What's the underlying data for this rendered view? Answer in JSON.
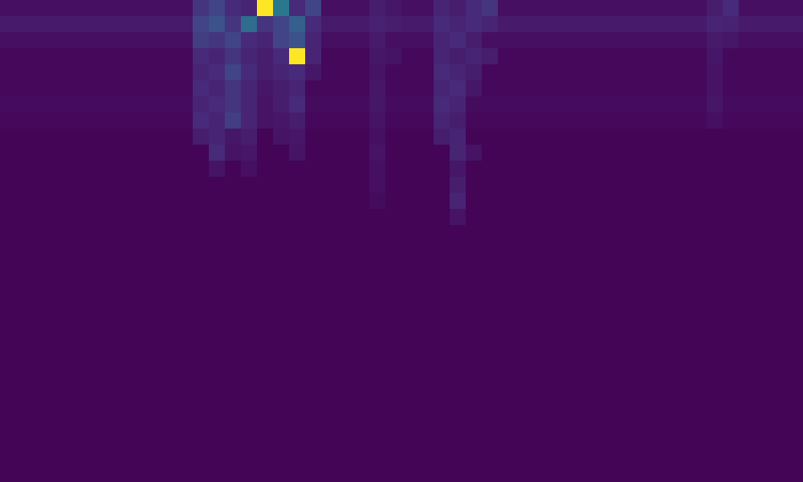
{
  "chart_data": {
    "type": "heatmap",
    "tick_labels": false,
    "color_range": [
      0,
      100
    ],
    "cells": [
      [
        4,
        4,
        4,
        4,
        4,
        4,
        4,
        4,
        4,
        4,
        4,
        4,
        15,
        20,
        12,
        10,
        100,
        40,
        12,
        20,
        4,
        4,
        4,
        8,
        6,
        4,
        4,
        10,
        8,
        12,
        15,
        4,
        4,
        4,
        4,
        4,
        4,
        4,
        4,
        4,
        4,
        4,
        4,
        4,
        8,
        12,
        4,
        4,
        4,
        4
      ],
      [
        7,
        7,
        7,
        7,
        7,
        7,
        7,
        7,
        7,
        7,
        7,
        7,
        20,
        25,
        15,
        35,
        15,
        20,
        30,
        12,
        7,
        7,
        7,
        9,
        8,
        7,
        7,
        12,
        10,
        12,
        10,
        7,
        7,
        7,
        7,
        7,
        7,
        7,
        7,
        7,
        7,
        7,
        7,
        7,
        10,
        9,
        7,
        7,
        7,
        7
      ],
      [
        4,
        4,
        4,
        4,
        4,
        4,
        4,
        4,
        4,
        4,
        4,
        4,
        18,
        15,
        20,
        12,
        10,
        20,
        25,
        10,
        4,
        4,
        4,
        7,
        4,
        4,
        4,
        10,
        12,
        8,
        4,
        4,
        4,
        4,
        4,
        4,
        4,
        4,
        4,
        4,
        4,
        4,
        4,
        4,
        7,
        6,
        4,
        4,
        4,
        4
      ],
      [
        2,
        2,
        2,
        2,
        2,
        2,
        2,
        2,
        2,
        2,
        2,
        2,
        12,
        10,
        15,
        10,
        8,
        12,
        100,
        10,
        2,
        2,
        2,
        6,
        5,
        2,
        2,
        10,
        8,
        10,
        8,
        2,
        2,
        2,
        2,
        2,
        2,
        2,
        2,
        2,
        2,
        2,
        2,
        2,
        6,
        2,
        2,
        2,
        2,
        2
      ],
      [
        2,
        2,
        2,
        2,
        2,
        2,
        2,
        2,
        2,
        2,
        2,
        2,
        10,
        12,
        20,
        12,
        8,
        10,
        12,
        6,
        2,
        2,
        2,
        5,
        2,
        2,
        2,
        12,
        10,
        8,
        2,
        2,
        2,
        2,
        2,
        2,
        2,
        2,
        2,
        2,
        2,
        2,
        2,
        2,
        5,
        2,
        2,
        2,
        2,
        2
      ],
      [
        2,
        2,
        2,
        2,
        2,
        2,
        2,
        2,
        2,
        2,
        2,
        2,
        12,
        10,
        15,
        10,
        6,
        8,
        10,
        2,
        2,
        2,
        2,
        6,
        2,
        2,
        2,
        10,
        12,
        6,
        2,
        2,
        2,
        2,
        2,
        2,
        2,
        2,
        2,
        2,
        2,
        2,
        2,
        2,
        5,
        2,
        2,
        2,
        2,
        2
      ],
      [
        3,
        3,
        3,
        3,
        3,
        3,
        3,
        3,
        3,
        3,
        3,
        3,
        10,
        12,
        15,
        10,
        5,
        8,
        12,
        3,
        3,
        3,
        3,
        6,
        3,
        3,
        3,
        12,
        10,
        3,
        3,
        3,
        3,
        3,
        3,
        3,
        3,
        3,
        3,
        3,
        3,
        3,
        3,
        3,
        6,
        3,
        3,
        3,
        3,
        3
      ],
      [
        2,
        2,
        2,
        2,
        2,
        2,
        2,
        2,
        2,
        2,
        2,
        2,
        12,
        10,
        18,
        10,
        5,
        6,
        8,
        2,
        2,
        2,
        2,
        5,
        2,
        2,
        2,
        10,
        8,
        2,
        2,
        2,
        2,
        2,
        2,
        2,
        2,
        2,
        2,
        2,
        2,
        2,
        2,
        2,
        4,
        2,
        2,
        2,
        2,
        2
      ],
      [
        1,
        1,
        1,
        1,
        1,
        1,
        1,
        1,
        1,
        1,
        1,
        1,
        8,
        10,
        6,
        8,
        1,
        5,
        6,
        1,
        1,
        1,
        1,
        4,
        1,
        1,
        1,
        8,
        10,
        1,
        1,
        1,
        1,
        1,
        1,
        1,
        1,
        1,
        1,
        1,
        1,
        1,
        1,
        1,
        1,
        1,
        1,
        1,
        1,
        1
      ],
      [
        1,
        1,
        1,
        1,
        1,
        1,
        1,
        1,
        1,
        1,
        1,
        1,
        1,
        12,
        5,
        6,
        1,
        1,
        5,
        1,
        1,
        1,
        1,
        5,
        1,
        1,
        1,
        1,
        10,
        5,
        1,
        1,
        1,
        1,
        1,
        1,
        1,
        1,
        1,
        1,
        1,
        1,
        1,
        1,
        1,
        1,
        1,
        1,
        1,
        1
      ],
      [
        1,
        1,
        1,
        1,
        1,
        1,
        1,
        1,
        1,
        1,
        1,
        1,
        1,
        5,
        1,
        4,
        1,
        1,
        1,
        1,
        1,
        1,
        1,
        4,
        1,
        1,
        1,
        1,
        6,
        1,
        1,
        1,
        1,
        1,
        1,
        1,
        1,
        1,
        1,
        1,
        1,
        1,
        1,
        1,
        1,
        1,
        1,
        1,
        1,
        1
      ],
      [
        1,
        1,
        1,
        1,
        1,
        1,
        1,
        1,
        1,
        1,
        1,
        1,
        1,
        1,
        1,
        1,
        1,
        1,
        1,
        1,
        1,
        1,
        1,
        4,
        1,
        1,
        1,
        1,
        8,
        1,
        1,
        1,
        1,
        1,
        1,
        1,
        1,
        1,
        1,
        1,
        1,
        1,
        1,
        1,
        1,
        1,
        1,
        1,
        1,
        1
      ],
      [
        1,
        1,
        1,
        1,
        1,
        1,
        1,
        1,
        1,
        1,
        1,
        1,
        1,
        1,
        1,
        1,
        1,
        1,
        1,
        1,
        1,
        1,
        1,
        3,
        1,
        1,
        1,
        1,
        10,
        1,
        1,
        1,
        1,
        1,
        1,
        1,
        1,
        1,
        1,
        1,
        1,
        1,
        1,
        1,
        1,
        1,
        1,
        1,
        1,
        1
      ],
      [
        1,
        1,
        1,
        1,
        1,
        1,
        1,
        1,
        1,
        1,
        1,
        1,
        1,
        1,
        1,
        1,
        1,
        1,
        1,
        1,
        1,
        1,
        1,
        1,
        1,
        1,
        1,
        1,
        5,
        1,
        1,
        1,
        1,
        1,
        1,
        1,
        1,
        1,
        1,
        1,
        1,
        1,
        1,
        1,
        1,
        1,
        1,
        1,
        1,
        1
      ],
      [
        1,
        1,
        1,
        1,
        1,
        1,
        1,
        1,
        1,
        1,
        1,
        1,
        1,
        1,
        1,
        1,
        1,
        1,
        1,
        1,
        1,
        1,
        1,
        1,
        1,
        1,
        1,
        1,
        1,
        1,
        1,
        1,
        1,
        1,
        1,
        1,
        1,
        1,
        1,
        1,
        1,
        1,
        1,
        1,
        1,
        1,
        1,
        1,
        1,
        1
      ],
      [
        1,
        1,
        1,
        1,
        1,
        1,
        1,
        1,
        1,
        1,
        1,
        1,
        1,
        1,
        1,
        1,
        1,
        1,
        1,
        1,
        1,
        1,
        1,
        1,
        1,
        1,
        1,
        1,
        1,
        1,
        1,
        1,
        1,
        1,
        1,
        1,
        1,
        1,
        1,
        1,
        1,
        1,
        1,
        1,
        1,
        1,
        1,
        1,
        1,
        1
      ],
      [
        1,
        1,
        1,
        1,
        1,
        1,
        1,
        1,
        1,
        1,
        1,
        1,
        1,
        1,
        1,
        1,
        1,
        1,
        1,
        1,
        1,
        1,
        1,
        1,
        1,
        1,
        1,
        1,
        1,
        1,
        1,
        1,
        1,
        1,
        1,
        1,
        1,
        1,
        1,
        1,
        1,
        1,
        1,
        1,
        1,
        1,
        1,
        1,
        1,
        1
      ],
      [
        1,
        1,
        1,
        1,
        1,
        1,
        1,
        1,
        1,
        1,
        1,
        1,
        1,
        1,
        1,
        1,
        1,
        1,
        1,
        1,
        1,
        1,
        1,
        1,
        1,
        1,
        1,
        1,
        1,
        1,
        1,
        1,
        1,
        1,
        1,
        1,
        1,
        1,
        1,
        1,
        1,
        1,
        1,
        1,
        1,
        1,
        1,
        1,
        1,
        1
      ],
      [
        1,
        1,
        1,
        1,
        1,
        1,
        1,
        1,
        1,
        1,
        1,
        1,
        1,
        1,
        1,
        1,
        1,
        1,
        1,
        1,
        1,
        1,
        1,
        1,
        1,
        1,
        1,
        1,
        1,
        1,
        1,
        1,
        1,
        1,
        1,
        1,
        1,
        1,
        1,
        1,
        1,
        1,
        1,
        1,
        1,
        1,
        1,
        1,
        1,
        1
      ],
      [
        1,
        1,
        1,
        1,
        1,
        1,
        1,
        1,
        1,
        1,
        1,
        1,
        1,
        1,
        1,
        1,
        1,
        1,
        1,
        1,
        1,
        1,
        1,
        1,
        1,
        1,
        1,
        1,
        1,
        1,
        1,
        1,
        1,
        1,
        1,
        1,
        1,
        1,
        1,
        1,
        1,
        1,
        1,
        1,
        1,
        1,
        1,
        1,
        1,
        1
      ],
      [
        1,
        1,
        1,
        1,
        1,
        1,
        1,
        1,
        1,
        1,
        1,
        1,
        1,
        1,
        1,
        1,
        1,
        1,
        1,
        1,
        1,
        1,
        1,
        1,
        1,
        1,
        1,
        1,
        1,
        1,
        1,
        1,
        1,
        1,
        1,
        1,
        1,
        1,
        1,
        1,
        1,
        1,
        1,
        1,
        1,
        1,
        1,
        1,
        1,
        1
      ],
      [
        1,
        1,
        1,
        1,
        1,
        1,
        1,
        1,
        1,
        1,
        1,
        1,
        1,
        1,
        1,
        1,
        1,
        1,
        1,
        1,
        1,
        1,
        1,
        1,
        1,
        1,
        1,
        1,
        1,
        1,
        1,
        1,
        1,
        1,
        1,
        1,
        1,
        1,
        1,
        1,
        1,
        1,
        1,
        1,
        1,
        1,
        1,
        1,
        1,
        1
      ],
      [
        1,
        1,
        1,
        1,
        1,
        1,
        1,
        1,
        1,
        1,
        1,
        1,
        1,
        1,
        1,
        1,
        1,
        1,
        1,
        1,
        1,
        1,
        1,
        1,
        1,
        1,
        1,
        1,
        1,
        1,
        1,
        1,
        1,
        1,
        1,
        1,
        1,
        1,
        1,
        1,
        1,
        1,
        1,
        1,
        1,
        1,
        1,
        1,
        1,
        1
      ],
      [
        1,
        1,
        1,
        1,
        1,
        1,
        1,
        1,
        1,
        1,
        1,
        1,
        1,
        1,
        1,
        1,
        1,
        1,
        1,
        1,
        1,
        1,
        1,
        1,
        1,
        1,
        1,
        1,
        1,
        1,
        1,
        1,
        1,
        1,
        1,
        1,
        1,
        1,
        1,
        1,
        1,
        1,
        1,
        1,
        1,
        1,
        1,
        1,
        1,
        1
      ],
      [
        1,
        1,
        1,
        1,
        1,
        1,
        1,
        1,
        1,
        1,
        1,
        1,
        1,
        1,
        1,
        1,
        1,
        1,
        1,
        1,
        1,
        1,
        1,
        1,
        1,
        1,
        1,
        1,
        1,
        1,
        1,
        1,
        1,
        1,
        1,
        1,
        1,
        1,
        1,
        1,
        1,
        1,
        1,
        1,
        1,
        1,
        1,
        1,
        1,
        1
      ],
      [
        1,
        1,
        1,
        1,
        1,
        1,
        1,
        1,
        1,
        1,
        1,
        1,
        1,
        1,
        1,
        1,
        1,
        1,
        1,
        1,
        1,
        1,
        1,
        1,
        1,
        1,
        1,
        1,
        1,
        1,
        1,
        1,
        1,
        1,
        1,
        1,
        1,
        1,
        1,
        1,
        1,
        1,
        1,
        1,
        1,
        1,
        1,
        1,
        1,
        1
      ],
      [
        1,
        1,
        1,
        1,
        1,
        1,
        1,
        1,
        1,
        1,
        1,
        1,
        1,
        1,
        1,
        1,
        1,
        1,
        1,
        1,
        1,
        1,
        1,
        1,
        1,
        1,
        1,
        1,
        1,
        1,
        1,
        1,
        1,
        1,
        1,
        1,
        1,
        1,
        1,
        1,
        1,
        1,
        1,
        1,
        1,
        1,
        1,
        1,
        1,
        1
      ],
      [
        1,
        1,
        1,
        1,
        1,
        1,
        1,
        1,
        1,
        1,
        1,
        1,
        1,
        1,
        1,
        1,
        1,
        1,
        1,
        1,
        1,
        1,
        1,
        1,
        1,
        1,
        1,
        1,
        1,
        1,
        1,
        1,
        1,
        1,
        1,
        1,
        1,
        1,
        1,
        1,
        1,
        1,
        1,
        1,
        1,
        1,
        1,
        1,
        1,
        1
      ],
      [
        1,
        1,
        1,
        1,
        1,
        1,
        1,
        1,
        1,
        1,
        1,
        1,
        1,
        1,
        1,
        1,
        1,
        1,
        1,
        1,
        1,
        1,
        1,
        1,
        1,
        1,
        1,
        1,
        1,
        1,
        1,
        1,
        1,
        1,
        1,
        1,
        1,
        1,
        1,
        1,
        1,
        1,
        1,
        1,
        1,
        1,
        1,
        1,
        1,
        1
      ],
      [
        1,
        1,
        1,
        1,
        1,
        1,
        1,
        1,
        1,
        1,
        1,
        1,
        1,
        1,
        1,
        1,
        1,
        1,
        1,
        1,
        1,
        1,
        1,
        1,
        1,
        1,
        1,
        1,
        1,
        1,
        1,
        1,
        1,
        1,
        1,
        1,
        1,
        1,
        1,
        1,
        1,
        1,
        1,
        1,
        1,
        1,
        1,
        1,
        1,
        1
      ]
    ]
  }
}
